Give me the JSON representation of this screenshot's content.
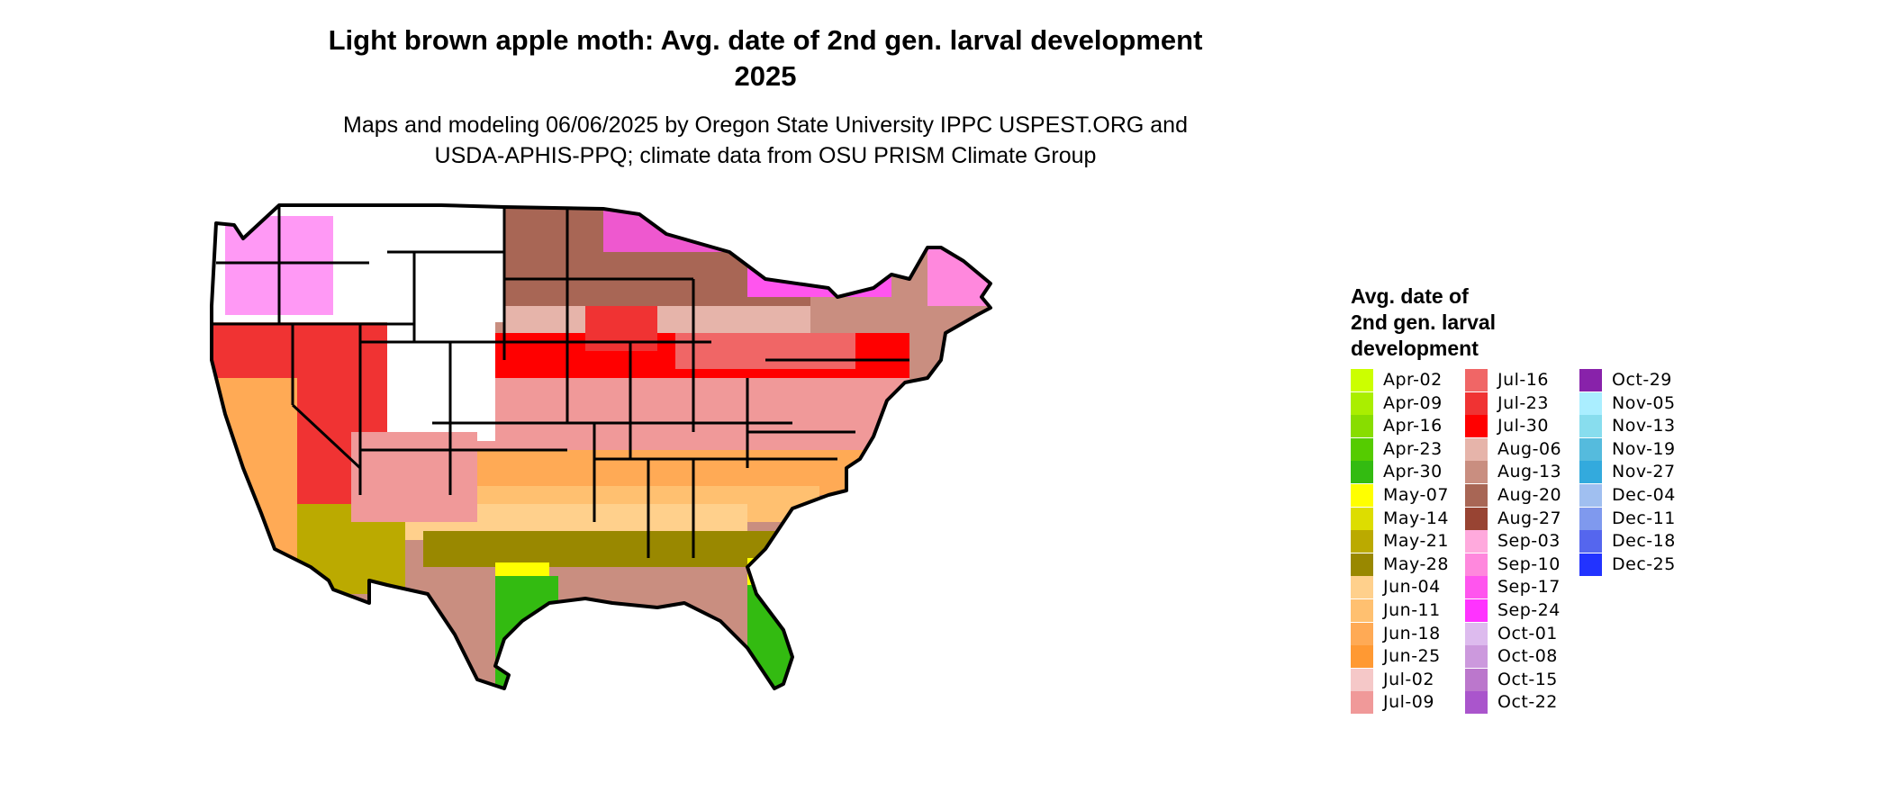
{
  "header": {
    "title_line1": "Light brown apple moth: Avg. date of 2nd gen. larval development",
    "title_line2": "2025",
    "subtitle_line1": "Maps and modeling 06/06/2025 by Oregon State University IPPC USPEST.ORG and",
    "subtitle_line2": "USDA-APHIS-PPQ; climate data from OSU PRISM Climate Group"
  },
  "legend": {
    "title_line1": "Avg. date of",
    "title_line2": "2nd gen. larval",
    "title_line3": "development",
    "items": [
      {
        "label": "Apr-02",
        "color": "#ccff00"
      },
      {
        "label": "Apr-09",
        "color": "#aaee00"
      },
      {
        "label": "Apr-16",
        "color": "#88dd00"
      },
      {
        "label": "Apr-23",
        "color": "#55cc00"
      },
      {
        "label": "Apr-30",
        "color": "#33bb11"
      },
      {
        "label": "May-07",
        "color": "#ffff00"
      },
      {
        "label": "May-14",
        "color": "#dddd00"
      },
      {
        "label": "May-21",
        "color": "#bbaa00"
      },
      {
        "label": "May-28",
        "color": "#998800"
      },
      {
        "label": "Jun-04",
        "color": "#ffd08c"
      },
      {
        "label": "Jun-11",
        "color": "#ffc070"
      },
      {
        "label": "Jun-18",
        "color": "#ffaa55"
      },
      {
        "label": "Jun-25",
        "color": "#ff9933"
      },
      {
        "label": "Jul-02",
        "color": "#f5c8c8"
      },
      {
        "label": "Jul-09",
        "color": "#f09999"
      },
      {
        "label": "Jul-16",
        "color": "#f06666"
      },
      {
        "label": "Jul-23",
        "color": "#f03333"
      },
      {
        "label": "Jul-30",
        "color": "#ff0000"
      },
      {
        "label": "Aug-06",
        "color": "#e6b4aa"
      },
      {
        "label": "Aug-13",
        "color": "#c98e80"
      },
      {
        "label": "Aug-20",
        "color": "#a86655"
      },
      {
        "label": "Aug-27",
        "color": "#984433"
      },
      {
        "label": "Sep-03",
        "color": "#ffaadd"
      },
      {
        "label": "Sep-10",
        "color": "#ff88dd"
      },
      {
        "label": "Sep-17",
        "color": "#ff55ee"
      },
      {
        "label": "Sep-24",
        "color": "#ff33ff"
      },
      {
        "label": "Oct-01",
        "color": "#ddbbee"
      },
      {
        "label": "Oct-08",
        "color": "#cc99dd"
      },
      {
        "label": "Oct-15",
        "color": "#bb77cc"
      },
      {
        "label": "Oct-22",
        "color": "#aa55cc"
      },
      {
        "label": "Oct-29",
        "color": "#8822aa"
      },
      {
        "label": "Nov-05",
        "color": "#aaeeff"
      },
      {
        "label": "Nov-13",
        "color": "#88ddee"
      },
      {
        "label": "Nov-19",
        "color": "#55bbdd"
      },
      {
        "label": "Nov-27",
        "color": "#33aadd"
      },
      {
        "label": "Dec-04",
        "color": "#a0bff0"
      },
      {
        "label": "Dec-11",
        "color": "#7f99ee"
      },
      {
        "label": "Dec-18",
        "color": "#5566ee"
      },
      {
        "label": "Dec-25",
        "color": "#2233ff"
      }
    ]
  },
  "map": {
    "no_data_color": "#ffffff",
    "border_color": "#000000"
  }
}
